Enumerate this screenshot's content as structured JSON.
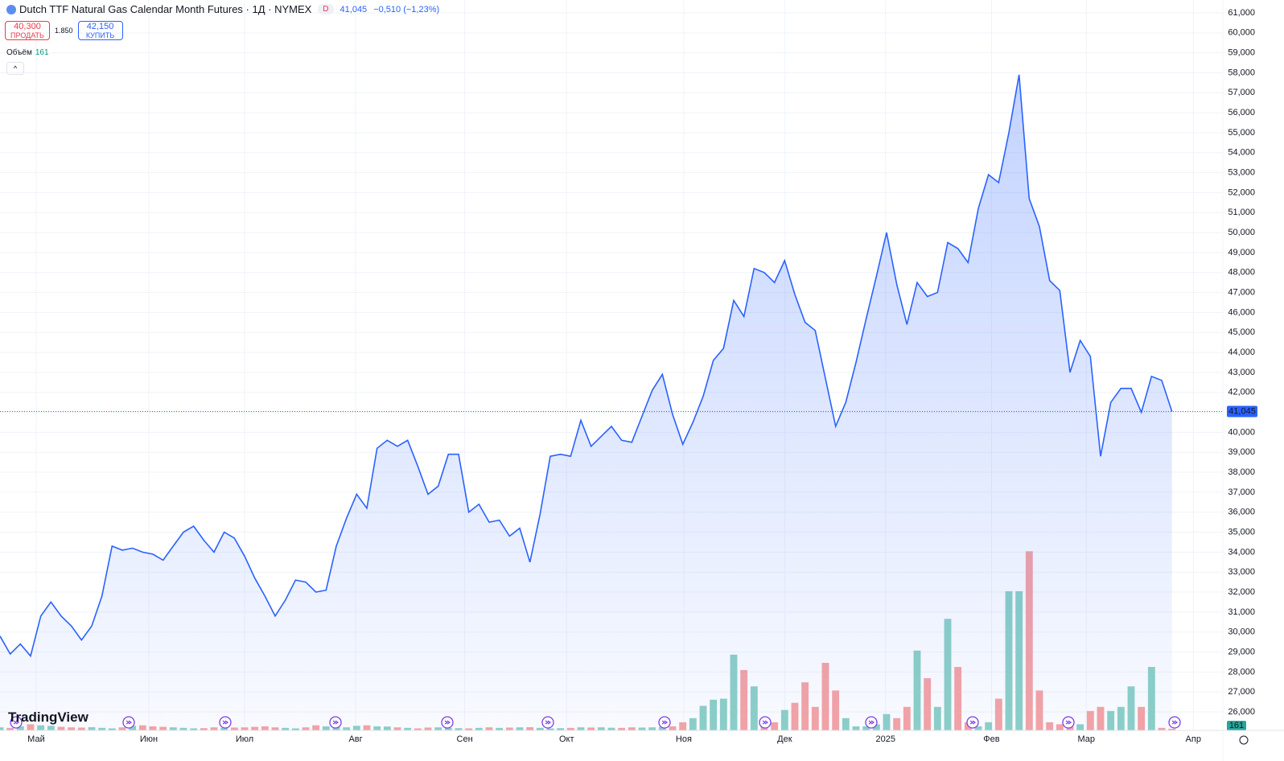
{
  "chart_data": {
    "type": "area",
    "title": "Dutch TTF Natural Gas Calendar Month Futures · 1Д · NYMEX",
    "interval_badge": "D",
    "last_price": {
      "value": 41.045,
      "label": "41,045"
    },
    "change": "−0,510 (−1,23%)",
    "sell": {
      "price": "40,300",
      "label": "ПРОДАТЬ"
    },
    "spread": "1.850",
    "buy": {
      "price": "42,150",
      "label": "КУПИТЬ"
    },
    "logo": "TradingView",
    "xlim": [
      0,
      120
    ],
    "xticks": [
      {
        "value": 3.55,
        "label": "Май"
      },
      {
        "value": 14.6,
        "label": "Июн"
      },
      {
        "value": 24.0,
        "label": "Июл"
      },
      {
        "value": 34.9,
        "label": "Авг"
      },
      {
        "value": 45.6,
        "label": "Сен"
      },
      {
        "value": 55.6,
        "label": "Окт"
      },
      {
        "value": 67.1,
        "label": "Ноя"
      },
      {
        "value": 77.0,
        "label": "Дек"
      },
      {
        "value": 86.9,
        "label": "2025"
      },
      {
        "value": 97.3,
        "label": "Фев"
      },
      {
        "value": 106.6,
        "label": "Мар"
      },
      {
        "value": 117.1,
        "label": "Апр"
      }
    ],
    "ylim": [
      25.074,
      61.644
    ],
    "yticks": [
      {
        "value": 26,
        "label": "26,000"
      },
      {
        "value": 27,
        "label": "27,000"
      },
      {
        "value": 28,
        "label": "28,000"
      },
      {
        "value": 29,
        "label": "29,000"
      },
      {
        "value": 30,
        "label": "30,000"
      },
      {
        "value": 31,
        "label": "31,000"
      },
      {
        "value": 32,
        "label": "32,000"
      },
      {
        "value": 33,
        "label": "33,000"
      },
      {
        "value": 34,
        "label": "34,000"
      },
      {
        "value": 35,
        "label": "35,000"
      },
      {
        "value": 36,
        "label": "36,000"
      },
      {
        "value": 37,
        "label": "37,000"
      },
      {
        "value": 38,
        "label": "38,000"
      },
      {
        "value": 39,
        "label": "39,000"
      },
      {
        "value": 40,
        "label": "40,000"
      },
      {
        "value": 41,
        "label": "41,000"
      },
      {
        "value": 42,
        "label": "42,000"
      },
      {
        "value": 43,
        "label": "43,000"
      },
      {
        "value": 44,
        "label": "44,000"
      },
      {
        "value": 45,
        "label": "45,000"
      },
      {
        "value": 46,
        "label": "46,000"
      },
      {
        "value": 47,
        "label": "47,000"
      },
      {
        "value": 48,
        "label": "48,000"
      },
      {
        "value": 49,
        "label": "49,000"
      },
      {
        "value": 50,
        "label": "50,000"
      },
      {
        "value": 51,
        "label": "51,000"
      },
      {
        "value": 52,
        "label": "52,000"
      },
      {
        "value": 53,
        "label": "53,000"
      },
      {
        "value": 54,
        "label": "54,000"
      },
      {
        "value": 55,
        "label": "55,000"
      },
      {
        "value": 56,
        "label": "56,000"
      },
      {
        "value": 57,
        "label": "57,000"
      },
      {
        "value": 58,
        "label": "58,000"
      },
      {
        "value": 59,
        "label": "59,000"
      },
      {
        "value": 60,
        "label": "60,000"
      },
      {
        "value": 61,
        "label": "61,000"
      }
    ],
    "grid": true,
    "color": "#2962ff",
    "values": [
      29.8,
      28.9,
      29.4,
      28.8,
      30.8,
      31.5,
      30.8,
      30.3,
      29.6,
      30.3,
      31.8,
      34.3,
      34.1,
      34.2,
      34.0,
      33.9,
      33.6,
      34.3,
      35.0,
      35.3,
      34.6,
      34.0,
      35.0,
      34.7,
      33.8,
      32.7,
      31.8,
      30.8,
      31.6,
      32.6,
      32.5,
      32.0,
      32.1,
      34.3,
      35.7,
      36.9,
      36.2,
      39.2,
      39.6,
      39.3,
      39.6,
      38.3,
      36.9,
      37.3,
      38.9,
      38.9,
      36.0,
      36.4,
      35.5,
      35.6,
      34.8,
      35.2,
      33.5,
      35.9,
      38.8,
      38.9,
      38.8,
      40.6,
      39.3,
      39.8,
      40.3,
      39.6,
      39.5,
      40.8,
      42.1,
      42.9,
      40.9,
      39.4,
      40.5,
      41.8,
      43.6,
      44.2,
      46.6,
      45.8,
      48.2,
      48.0,
      47.5,
      48.6,
      46.9,
      45.5,
      45.1,
      42.7,
      40.3,
      41.5,
      43.5,
      45.7,
      47.8,
      50.0,
      47.4,
      45.4,
      47.5,
      46.8,
      47.0,
      49.5,
      49.2,
      48.5,
      51.2,
      52.9,
      52.5,
      55.0,
      57.9,
      51.7,
      50.3,
      47.6,
      47.1,
      43.0,
      44.6,
      43.8,
      38.8,
      41.5,
      42.2,
      42.2,
      41.0,
      42.8,
      42.6,
      41.045
    ],
    "volume": {
      "name": "Объём",
      "up_color": "#8ed1c6",
      "down_color": "#f7a4a4",
      "ylim": [
        0,
        22000
      ],
      "values": [
        300,
        250,
        400,
        600,
        500,
        450,
        350,
        300,
        280,
        320,
        250,
        200,
        300,
        450,
        500,
        400,
        350,
        300,
        250,
        200,
        220,
        300,
        250,
        280,
        300,
        350,
        400,
        300,
        250,
        200,
        300,
        500,
        400,
        350,
        300,
        450,
        500,
        400,
        380,
        300,
        250,
        200,
        280,
        300,
        250,
        220,
        200,
        250,
        300,
        250,
        280,
        300,
        320,
        250,
        200,
        220,
        250,
        300,
        280,
        300,
        260,
        250,
        300,
        280,
        300,
        350,
        400,
        800,
        1200,
        2400,
        3000,
        3100,
        7400,
        5900,
        4300,
        1200,
        800,
        2000,
        2700,
        4700,
        2300,
        6600,
        3900,
        1200,
        400,
        400,
        600,
        1600,
        1200,
        2300,
        7800,
        5100,
        2300,
        10900,
        6200,
        800,
        400,
        800,
        3100,
        13600,
        13600,
        17500,
        3900,
        800,
        600,
        400,
        600,
        1900,
        2300,
        1900,
        2300,
        4300,
        2300,
        6200,
        250,
        161
      ]
    }
  }
}
